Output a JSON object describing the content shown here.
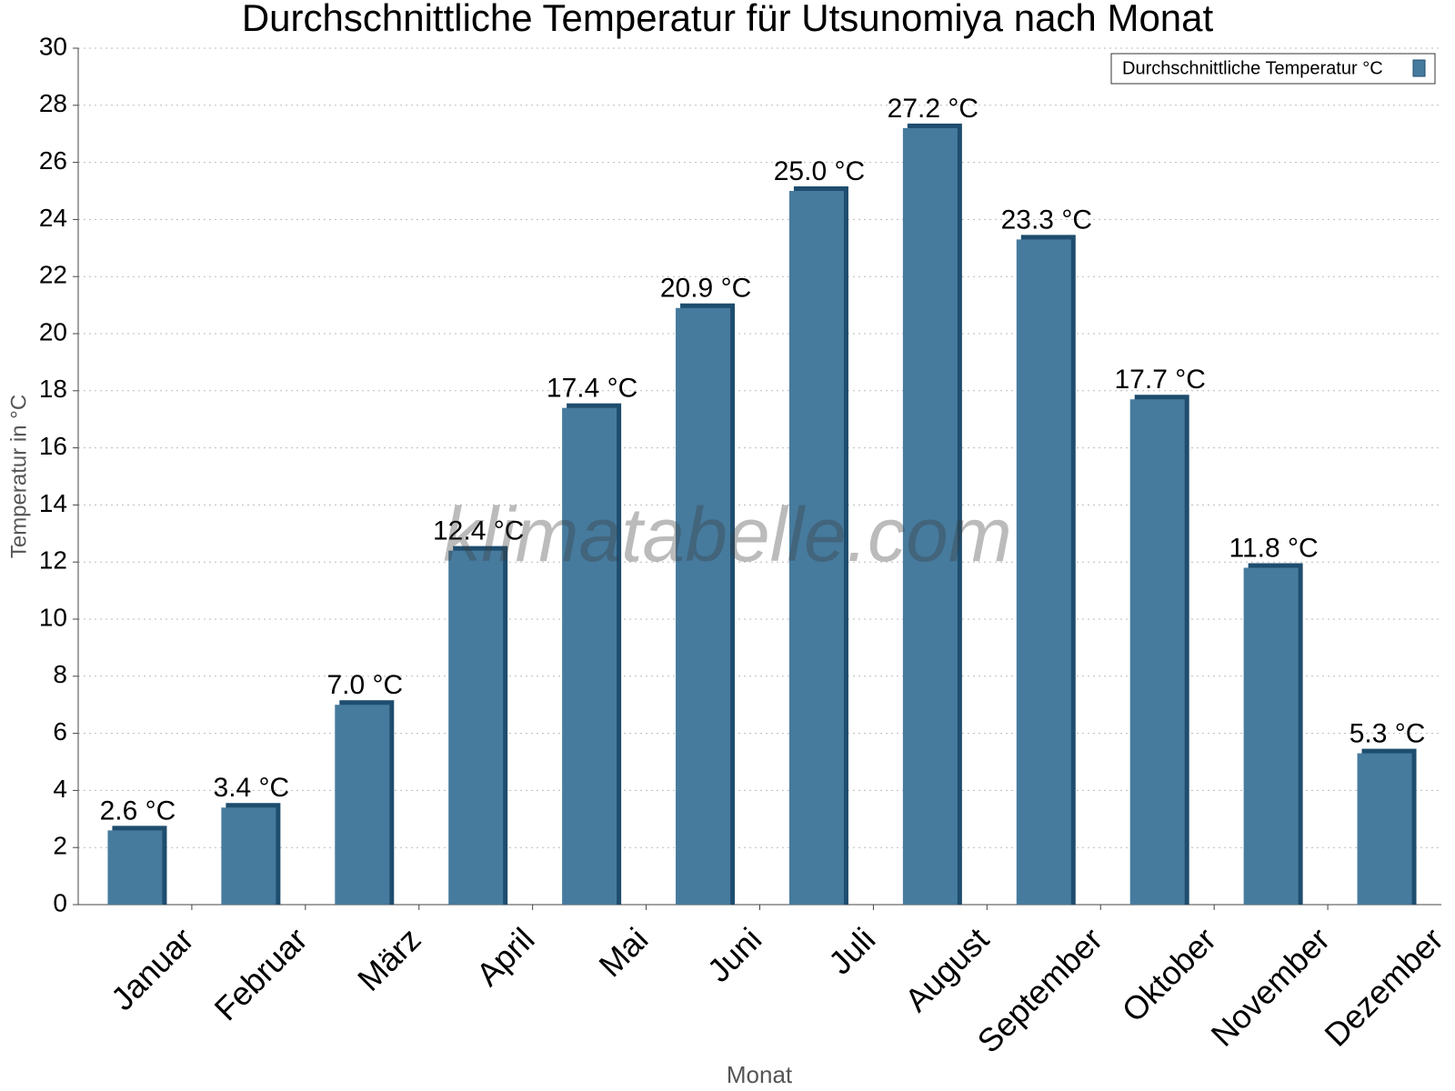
{
  "chart_data": {
    "type": "bar",
    "title": "Durchschnittliche Temperatur für Utsunomiya nach Monat",
    "x_label": "Monat",
    "y_label": "Temperatur in °C",
    "watermark": "klimatabelle.com",
    "categories": [
      "Januar",
      "Februar",
      "März",
      "April",
      "Mai",
      "Juni",
      "Juli",
      "August",
      "September",
      "Oktober",
      "November",
      "Dezember"
    ],
    "series": [
      {
        "name": "Durchschnittliche Temperatur °C",
        "color": "#467b9e",
        "values": [
          2.6,
          3.4,
          7.0,
          12.4,
          17.4,
          20.9,
          25.0,
          27.2,
          23.3,
          17.7,
          11.8,
          5.3
        ],
        "value_labels": [
          "2.6 °C",
          "3.4 °C",
          "7.0 °C",
          "12.4 °C",
          "17.4 °C",
          "20.9 °C",
          "25.0 °C",
          "27.2 °C",
          "23.3 °C",
          "17.7 °C",
          "11.8 °C",
          "5.3 °C"
        ]
      }
    ],
    "ylim": [
      0,
      30
    ],
    "yticks": [
      0,
      2,
      4,
      6,
      8,
      10,
      12,
      14,
      16,
      18,
      20,
      22,
      24,
      26,
      28,
      30
    ],
    "grid": true,
    "legend": "top-right"
  }
}
